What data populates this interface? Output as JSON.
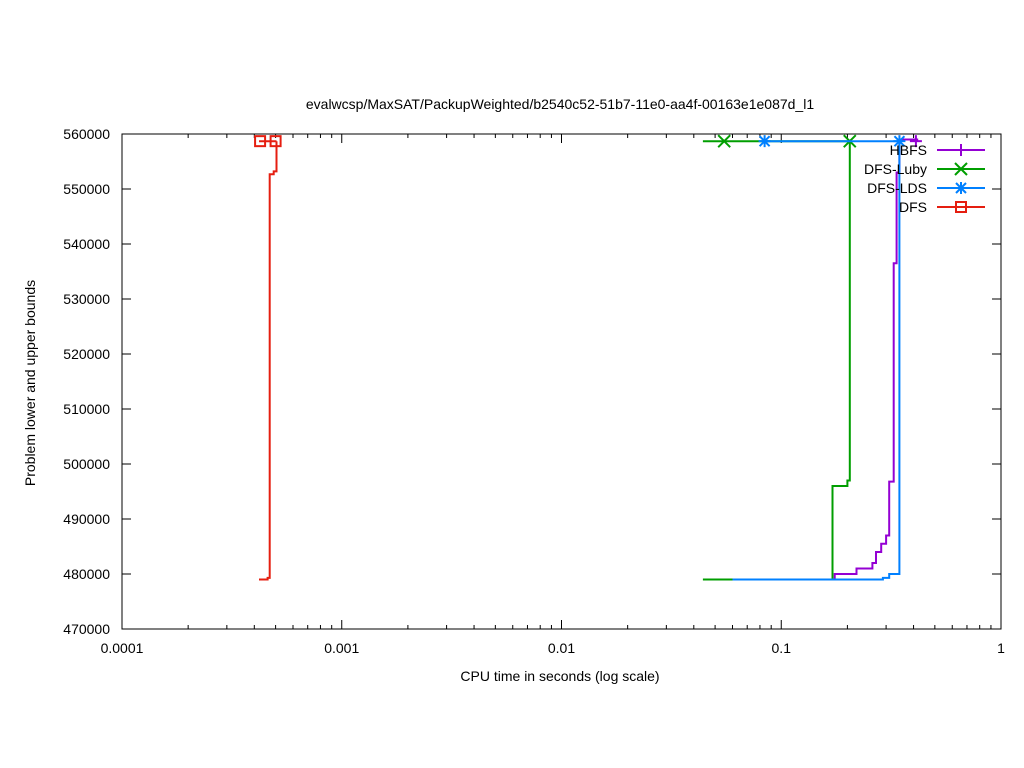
{
  "chart_data": {
    "type": "line",
    "title": "evalwcsp/MaxSAT/PackupWeighted/b2540c52-51b7-11e0-aa4f-00163e1e087d_l1",
    "xlabel": "CPU time in seconds (log scale)",
    "ylabel": "Problem lower and upper bounds",
    "xscale": "log",
    "xlim": [
      0.0001,
      1
    ],
    "ylim": [
      470000,
      560000
    ],
    "grid": false,
    "legend_position": "top-right",
    "xticks": [
      {
        "value": 0.0001,
        "label": "0.0001"
      },
      {
        "value": 0.001,
        "label": "0.001"
      },
      {
        "value": 0.01,
        "label": "0.01"
      },
      {
        "value": 0.1,
        "label": "0.1"
      },
      {
        "value": 1,
        "label": "1"
      }
    ],
    "yticks": [
      {
        "value": 470000,
        "label": "470000"
      },
      {
        "value": 480000,
        "label": "480000"
      },
      {
        "value": 490000,
        "label": "490000"
      },
      {
        "value": 500000,
        "label": "500000"
      },
      {
        "value": 510000,
        "label": "510000"
      },
      {
        "value": 520000,
        "label": "520000"
      },
      {
        "value": 530000,
        "label": "530000"
      },
      {
        "value": 540000,
        "label": "540000"
      },
      {
        "value": 550000,
        "label": "550000"
      },
      {
        "value": 560000,
        "label": "560000"
      }
    ],
    "series": [
      {
        "name": "HBFS",
        "color": "#9400d3",
        "marker": "plus",
        "lower": [
          [
            0.073,
            479000
          ],
          [
            0.175,
            479000
          ],
          [
            0.175,
            480000
          ],
          [
            0.22,
            480000
          ],
          [
            0.22,
            481000
          ],
          [
            0.26,
            481000
          ],
          [
            0.26,
            482000
          ],
          [
            0.27,
            482000
          ],
          [
            0.27,
            484000
          ],
          [
            0.285,
            484000
          ],
          [
            0.285,
            485500
          ],
          [
            0.3,
            485500
          ],
          [
            0.3,
            487000
          ],
          [
            0.31,
            487000
          ],
          [
            0.31,
            496800
          ],
          [
            0.325,
            496800
          ],
          [
            0.325,
            536500
          ],
          [
            0.335,
            536500
          ],
          [
            0.335,
            553000
          ],
          [
            0.345,
            553000
          ],
          [
            0.345,
            559000
          ],
          [
            0.42,
            559000
          ]
        ],
        "upper": [
          [
            0.41,
            558700
          ]
        ],
        "markers": [
          [
            0.41,
            558700
          ]
        ]
      },
      {
        "name": "DFS-Luby",
        "color": "#009e00",
        "marker": "cross",
        "lower": [
          [
            0.044,
            479000
          ],
          [
            0.171,
            479000
          ],
          [
            0.171,
            496000
          ],
          [
            0.2,
            496000
          ],
          [
            0.2,
            497000
          ],
          [
            0.205,
            497000
          ],
          [
            0.205,
            558700
          ]
        ],
        "upper": [
          [
            0.044,
            558700
          ],
          [
            0.205,
            558700
          ]
        ],
        "markers": [
          [
            0.055,
            558700
          ],
          [
            0.205,
            558700
          ]
        ]
      },
      {
        "name": "DFS-LDS",
        "color": "#0080ff",
        "marker": "star",
        "lower": [
          [
            0.06,
            479000
          ],
          [
            0.29,
            479000
          ],
          [
            0.29,
            479300
          ],
          [
            0.31,
            479300
          ],
          [
            0.31,
            480000
          ],
          [
            0.345,
            480000
          ],
          [
            0.345,
            558700
          ]
        ],
        "upper": [
          [
            0.084,
            558700
          ],
          [
            0.345,
            558700
          ]
        ],
        "markers": [
          [
            0.084,
            558700
          ],
          [
            0.345,
            558700
          ]
        ]
      },
      {
        "name": "DFS",
        "color": "#e51e10",
        "marker": "square",
        "lower": [
          [
            0.00042,
            479000
          ],
          [
            0.00046,
            479000
          ],
          [
            0.00046,
            479300
          ],
          [
            0.00047,
            479300
          ],
          [
            0.00047,
            552700
          ],
          [
            0.00049,
            552700
          ],
          [
            0.00049,
            553200
          ],
          [
            0.000505,
            553200
          ],
          [
            0.000505,
            558700
          ]
        ],
        "upper": [
          [
            0.00042,
            558700
          ],
          [
            0.000505,
            558700
          ]
        ],
        "markers": [
          [
            0.000425,
            558700
          ],
          [
            0.0005,
            558700
          ]
        ]
      }
    ]
  }
}
